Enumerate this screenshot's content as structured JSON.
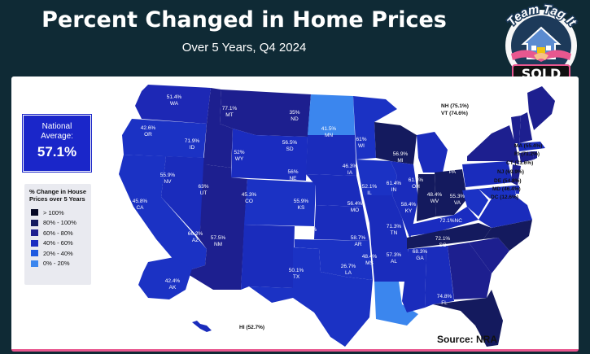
{
  "header": {
    "title": "Percent Changed in Home Prices",
    "subtitle": "Over 5 Years, Q4 2024"
  },
  "logo": {
    "top_text": "Team Tag It",
    "bottom_text": "SOLD",
    "icon": "house-handshake-icon"
  },
  "national": {
    "label_line1": "National",
    "label_line2": "Average:",
    "value": "57.1%"
  },
  "legend": {
    "title": "% Change in House Prices over 5 Years",
    "items": [
      {
        "label": "> 100%",
        "color": "#050824"
      },
      {
        "label": "80% - 100%",
        "color": "#141a5e"
      },
      {
        "label": "60% - 80%",
        "color": "#1d1f8f"
      },
      {
        "label": "40% - 60%",
        "color": "#1a2cc0"
      },
      {
        "label": "20% - 40%",
        "color": "#1f5ae0"
      },
      {
        "label": "0% - 20%",
        "color": "#3b86ee"
      }
    ]
  },
  "states": {
    "WA": {
      "name": "WA",
      "value": "51.4%"
    },
    "OR": {
      "name": "OR",
      "value": "42.6%"
    },
    "CA": {
      "name": "CA",
      "value": "45.8%"
    },
    "ID": {
      "name": "ID",
      "value": "71.9%"
    },
    "NV": {
      "name": "NV",
      "value": "55.9%"
    },
    "MT": {
      "name": "MT",
      "value": "77.1%"
    },
    "WY": {
      "name": "WY",
      "value": "52%"
    },
    "UT": {
      "name": "UT",
      "value": "63%"
    },
    "AZ": {
      "name": "AZ",
      "value": "66.2%"
    },
    "CO": {
      "name": "CO",
      "value": "45.3%"
    },
    "NM": {
      "name": "NM",
      "value": "57.5%"
    },
    "ND": {
      "name": "ND",
      "value": "35%"
    },
    "SD": {
      "name": "SD",
      "value": "56.5%"
    },
    "NE": {
      "name": "NE",
      "value": "56%"
    },
    "KS": {
      "name": "KS",
      "value": "55.9%"
    },
    "OK": {
      "name": "OK",
      "value": "51.2%"
    },
    "TX": {
      "name": "TX",
      "value": "50.1%"
    },
    "MN": {
      "name": "MN",
      "value": "41.5%"
    },
    "IA": {
      "name": "IA",
      "value": "46.3%"
    },
    "MO": {
      "name": "MO",
      "value": "56.4%"
    },
    "AR": {
      "name": "AR",
      "value": "58.7%"
    },
    "LA": {
      "name": "LA",
      "value": "26.7%"
    },
    "WI": {
      "name": "WI",
      "value": "61%"
    },
    "IL": {
      "name": "IL",
      "value": "52.1%"
    },
    "MI": {
      "name": "MI",
      "value": "56.9%"
    },
    "IN": {
      "name": "IN",
      "value": "61.4%"
    },
    "OH": {
      "name": "OH",
      "value": "61.4%"
    },
    "KY": {
      "name": "KY",
      "value": "58.4%"
    },
    "TN": {
      "name": "TN",
      "value": "71.3%"
    },
    "MS": {
      "name": "MS",
      "value": "48.4%"
    },
    "AL": {
      "name": "AL",
      "value": "57.3%"
    },
    "GA": {
      "name": "GA",
      "value": "68.3%"
    },
    "FL": {
      "name": "FL",
      "value": "74.8%"
    },
    "SC": {
      "name": "SC",
      "value": "72.1%"
    },
    "NC": {
      "name": "NC",
      "value": "72.1%"
    },
    "VA": {
      "name": "VA",
      "value": "55.3%"
    },
    "WV": {
      "name": "WV",
      "value": "48.4%"
    },
    "PA": {
      "name": "PA",
      "value": "54%"
    },
    "NY": {
      "name": "NY",
      "value": "60.2%"
    },
    "ME": {
      "name": "ME",
      "value": "78.5%"
    },
    "AK": {
      "name": "AK",
      "value": "42.4%"
    },
    "HI": {
      "name": "HI",
      "value": "(52.7%)"
    }
  },
  "northeast": [
    "NH (75.1%)",
    "VT (74.6%)",
    "MA (55.4%)",
    "RI (71.2%)",
    "CT (71.6%)",
    "NJ (69.9%)",
    "DE (54.8%)",
    "MD (46.4%)",
    "DC (12.6%)"
  ],
  "source": "Source: NRA",
  "colors": {
    "background": "#0f2a35",
    "panel": "#ffffff",
    "accent": "#e8578f"
  }
}
